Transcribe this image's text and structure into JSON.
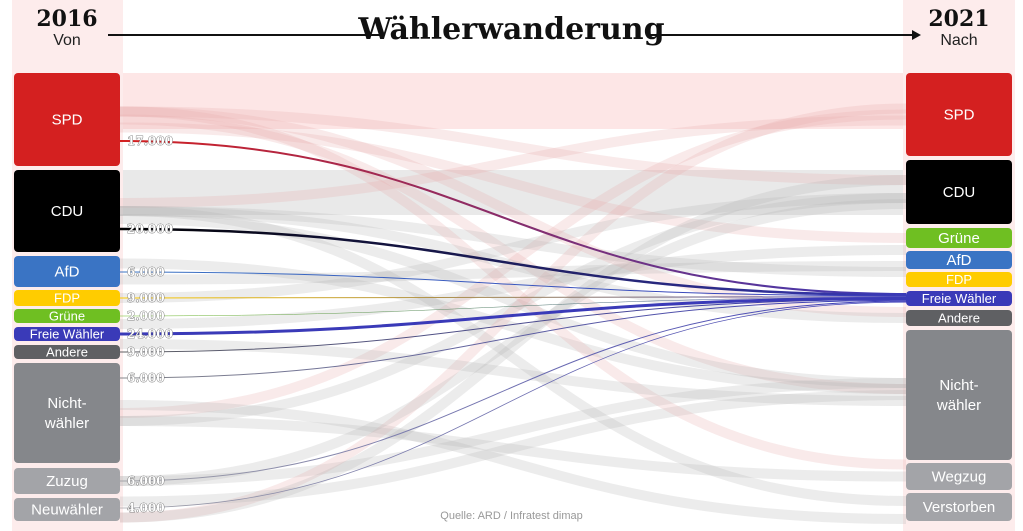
{
  "title": "Wählerwanderung",
  "left_header": {
    "year": "2016",
    "label": "Von"
  },
  "right_header": {
    "year": "2021",
    "label": "Nach"
  },
  "source": "Quelle: ARD / Infratest dimap",
  "left_nodes": [
    {
      "label": "SPD",
      "color": "#d42020"
    },
    {
      "label": "CDU",
      "color": "#000000"
    },
    {
      "label": "AfD",
      "color": "#3a74c4"
    },
    {
      "label": "FDP",
      "color": "#ffcc00"
    },
    {
      "label": "Grüne",
      "color": "#6fbf22"
    },
    {
      "label": "Freie Wähler",
      "color": "#3a3ab8"
    },
    {
      "label": "Andere",
      "color": "#5f6063"
    },
    {
      "label": "Nicht-\nwähler",
      "color": "#85878b"
    },
    {
      "label": "Zuzug",
      "color": "#a3a4a8"
    },
    {
      "label": "Neuwähler",
      "color": "#a3a4a8"
    }
  ],
  "right_nodes": [
    {
      "label": "SPD",
      "color": "#d42020"
    },
    {
      "label": "CDU",
      "color": "#000000"
    },
    {
      "label": "Grüne",
      "color": "#6fbf22"
    },
    {
      "label": "AfD",
      "color": "#3a74c4"
    },
    {
      "label": "FDP",
      "color": "#ffcc00"
    },
    {
      "label": "Freie Wähler",
      "color": "#3a3ab8"
    },
    {
      "label": "Andere",
      "color": "#5f6063"
    },
    {
      "label": "Nicht-\nwähler",
      "color": "#85878b"
    },
    {
      "label": "Wegzug",
      "color": "#a3a4a8"
    },
    {
      "label": "Verstorben",
      "color": "#a3a4a8"
    }
  ],
  "highlighted_target": "Freie Wähler",
  "flows_to_freie_waehler": [
    {
      "from": "SPD",
      "value": "17.000",
      "color": "#d42020"
    },
    {
      "from": "CDU",
      "value": "20.000",
      "color": "#000000"
    },
    {
      "from": "AfD",
      "value": "6.000",
      "color": "#3a74c4"
    },
    {
      "from": "FDP",
      "value": "9.000",
      "color": "#ffcc00"
    },
    {
      "from": "Grüne",
      "value": "2.000",
      "color": "#6fbf22"
    },
    {
      "from": "Freie Wähler",
      "value": "24.000",
      "color": "#3a3ab8"
    },
    {
      "from": "Andere",
      "value": "9.000",
      "color": "#5f6063"
    },
    {
      "from": "Nichtwähler",
      "value": "6.000",
      "color": "#85878b"
    },
    {
      "from": "Zuzug",
      "value": "6.000",
      "color": "#a3a4a8"
    },
    {
      "from": "Neuwähler",
      "value": "4.000",
      "color": "#a3a4a8"
    }
  ]
}
